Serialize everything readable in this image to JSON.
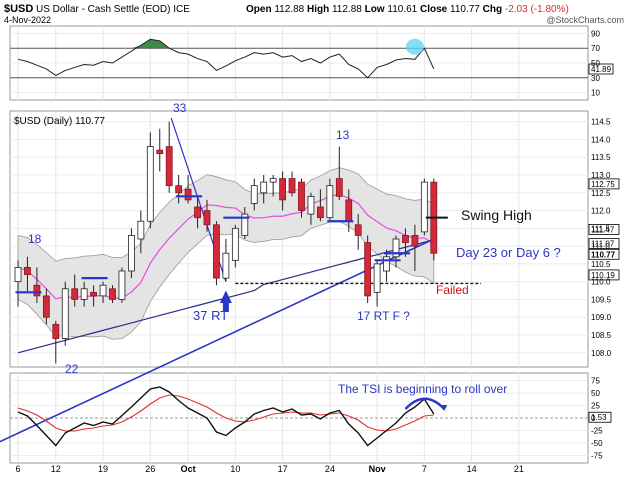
{
  "header": {
    "symbol": "$USD",
    "name": "US Dollar - Cash Settle (EOD)",
    "exchange": "ICE",
    "date": "4-Nov-2022",
    "watermark": "@StockCharts.com",
    "open_label": "Open",
    "open": "112.88",
    "high_label": "High",
    "high": "112.88",
    "low_label": "Low",
    "low": "110.61",
    "close_label": "Close",
    "close": "110.77",
    "chg_label": "Chg",
    "chg": "-2.03 (-1.80%)"
  },
  "rsi_panel": {
    "ticks": [
      "90",
      "70",
      "50",
      "30",
      "10"
    ],
    "value_badge": "41.89"
  },
  "price_panel": {
    "legend": "$USD (Daily) 110.77",
    "ticks": [
      "114.5",
      "114.0",
      "113.5",
      "113.0",
      "112.5",
      "112.0",
      "111.5",
      "111.0",
      "110.5",
      "110.0",
      "109.5",
      "109.0",
      "108.5",
      "108.0"
    ],
    "badges": [
      "112.75",
      "111.47",
      "111.07",
      "110.77",
      "110.19"
    ]
  },
  "tsi_panel": {
    "ticks": [
      "75",
      "50",
      "25",
      "0",
      "-25",
      "-50",
      "-75"
    ],
    "value_badge": "1.53"
  },
  "x_axis": {
    "labels": [
      "6",
      "12",
      "19",
      "26",
      "Oct",
      "10",
      "17",
      "24",
      "Nov",
      "7",
      "14",
      "21"
    ]
  },
  "annotations": {
    "label_18": "18",
    "label_33": "33",
    "label_13": "13",
    "label_22": "22",
    "label_37rt": "37 RT",
    "label_17rtf": "17 RT F ?",
    "swing_high": "Swing High",
    "day_count": "Day 23 or Day 6 ?",
    "failed": "Failed",
    "tsi_note": "The TSI is beginning to roll over"
  },
  "colors": {
    "up_candle": "#ffffff",
    "down_candle": "#d22a3a",
    "bollinger_fill": "#e4e4e4",
    "ma_fast": "#e84be0",
    "ma_slow": "#2d2a8a",
    "annotation_blue": "#2b35c9",
    "failed_red": "#d01020",
    "rsi_fill": "#2e7a3a",
    "tsi_signal": "#e03030"
  },
  "chart_data": {
    "type": "candlestick",
    "date_labels": [
      "6",
      "12",
      "19",
      "26",
      "Oct",
      "10",
      "17",
      "24",
      "Nov",
      "7",
      "14",
      "21"
    ],
    "ylim": [
      107.6,
      114.8
    ],
    "candles": [
      {
        "o": 110.0,
        "h": 110.6,
        "l": 109.3,
        "c": 110.4
      },
      {
        "o": 110.4,
        "h": 110.7,
        "l": 109.7,
        "c": 110.2
      },
      {
        "o": 109.9,
        "h": 110.4,
        "l": 109.4,
        "c": 109.6
      },
      {
        "o": 109.6,
        "h": 109.8,
        "l": 108.8,
        "c": 109.0
      },
      {
        "o": 108.8,
        "h": 108.9,
        "l": 107.7,
        "c": 108.4
      },
      {
        "o": 108.4,
        "h": 110.0,
        "l": 108.2,
        "c": 109.8
      },
      {
        "o": 109.8,
        "h": 110.2,
        "l": 109.3,
        "c": 109.5
      },
      {
        "o": 109.5,
        "h": 110.0,
        "l": 109.3,
        "c": 109.8
      },
      {
        "o": 109.7,
        "h": 109.9,
        "l": 109.3,
        "c": 109.6
      },
      {
        "o": 109.6,
        "h": 110.0,
        "l": 109.4,
        "c": 109.9
      },
      {
        "o": 109.8,
        "h": 109.9,
        "l": 109.4,
        "c": 109.5
      },
      {
        "o": 109.5,
        "h": 110.4,
        "l": 109.4,
        "c": 110.3
      },
      {
        "o": 110.3,
        "h": 111.5,
        "l": 110.1,
        "c": 111.3
      },
      {
        "o": 111.2,
        "h": 112.0,
        "l": 110.8,
        "c": 111.7
      },
      {
        "o": 111.7,
        "h": 114.2,
        "l": 111.5,
        "c": 113.8
      },
      {
        "o": 113.7,
        "h": 114.3,
        "l": 113.1,
        "c": 113.6
      },
      {
        "o": 113.8,
        "h": 114.5,
        "l": 112.5,
        "c": 112.7
      },
      {
        "o": 112.7,
        "h": 113.0,
        "l": 112.2,
        "c": 112.5
      },
      {
        "o": 112.6,
        "h": 113.0,
        "l": 112.2,
        "c": 112.3
      },
      {
        "o": 112.1,
        "h": 112.4,
        "l": 111.5,
        "c": 111.8
      },
      {
        "o": 112.0,
        "h": 112.3,
        "l": 111.4,
        "c": 111.6
      },
      {
        "o": 111.6,
        "h": 111.7,
        "l": 109.9,
        "c": 110.1
      },
      {
        "o": 110.1,
        "h": 111.2,
        "l": 110.0,
        "c": 110.8
      },
      {
        "o": 110.6,
        "h": 111.6,
        "l": 110.4,
        "c": 111.5
      },
      {
        "o": 111.3,
        "h": 112.1,
        "l": 111.2,
        "c": 111.9
      },
      {
        "o": 112.2,
        "h": 112.9,
        "l": 112.0,
        "c": 112.7
      },
      {
        "o": 112.5,
        "h": 113.0,
        "l": 112.2,
        "c": 112.8
      },
      {
        "o": 112.8,
        "h": 113.0,
        "l": 112.4,
        "c": 112.9
      },
      {
        "o": 112.9,
        "h": 113.1,
        "l": 112.0,
        "c": 112.3
      },
      {
        "o": 112.9,
        "h": 113.1,
        "l": 112.4,
        "c": 112.5
      },
      {
        "o": 112.8,
        "h": 112.9,
        "l": 111.8,
        "c": 112.0
      },
      {
        "o": 111.9,
        "h": 112.5,
        "l": 111.6,
        "c": 112.4
      },
      {
        "o": 112.1,
        "h": 112.6,
        "l": 111.7,
        "c": 111.8
      },
      {
        "o": 111.8,
        "h": 112.9,
        "l": 111.7,
        "c": 112.7
      },
      {
        "o": 112.9,
        "h": 113.8,
        "l": 112.3,
        "c": 112.4
      },
      {
        "o": 112.3,
        "h": 112.6,
        "l": 111.4,
        "c": 111.7
      },
      {
        "o": 111.6,
        "h": 111.9,
        "l": 110.9,
        "c": 111.3
      },
      {
        "o": 111.1,
        "h": 111.3,
        "l": 109.4,
        "c": 109.6
      },
      {
        "o": 109.7,
        "h": 110.6,
        "l": 109.3,
        "c": 110.5
      },
      {
        "o": 110.3,
        "h": 110.9,
        "l": 110.0,
        "c": 110.7
      },
      {
        "o": 110.7,
        "h": 111.3,
        "l": 110.4,
        "c": 111.2
      },
      {
        "o": 111.3,
        "h": 111.5,
        "l": 110.7,
        "c": 111.1
      },
      {
        "o": 111.3,
        "h": 111.6,
        "l": 110.3,
        "c": 111.0
      },
      {
        "o": 111.4,
        "h": 112.9,
        "l": 111.3,
        "c": 112.8
      },
      {
        "o": 112.8,
        "h": 112.9,
        "l": 110.6,
        "c": 110.8
      }
    ],
    "markers": [
      {
        "i": 1,
        "y": 109.7
      },
      {
        "i": 8,
        "y": 110.1
      },
      {
        "i": 18,
        "y": 112.4
      },
      {
        "i": 23,
        "y": 111.8
      },
      {
        "i": 34,
        "y": 111.7
      },
      {
        "i": 39,
        "y": 110.6
      },
      {
        "i": 40,
        "y": 110.8
      }
    ],
    "rsi": [
      55,
      52,
      47,
      42,
      33,
      40,
      44,
      48,
      47,
      52,
      50,
      58,
      66,
      74,
      82,
      80,
      70,
      64,
      62,
      56,
      52,
      40,
      46,
      53,
      58,
      64,
      62,
      64,
      58,
      60,
      52,
      56,
      50,
      58,
      62,
      48,
      42,
      30,
      44,
      48,
      54,
      56,
      55,
      70,
      42
    ],
    "rsi_ylim": [
      0,
      100
    ],
    "tsi": [
      12,
      4,
      -15,
      -35,
      -55,
      -30,
      -20,
      -10,
      -15,
      -8,
      -12,
      5,
      22,
      40,
      58,
      62,
      52,
      35,
      20,
      10,
      0,
      -28,
      -35,
      -20,
      -8,
      8,
      15,
      20,
      12,
      18,
      6,
      8,
      -2,
      10,
      15,
      -12,
      -30,
      -55,
      -40,
      -25,
      -10,
      10,
      22,
      38,
      8
    ],
    "tsi_signal": [
      20,
      14,
      6,
      -6,
      -20,
      -26,
      -26,
      -22,
      -20,
      -16,
      -14,
      -8,
      2,
      14,
      28,
      40,
      46,
      44,
      38,
      30,
      22,
      10,
      0,
      -6,
      -8,
      -4,
      2,
      8,
      10,
      12,
      10,
      10,
      6,
      8,
      10,
      4,
      -4,
      -18,
      -24,
      -26,
      -22,
      -14,
      -6,
      4,
      6
    ],
    "tsi_ylim": [
      -90,
      90
    ]
  }
}
